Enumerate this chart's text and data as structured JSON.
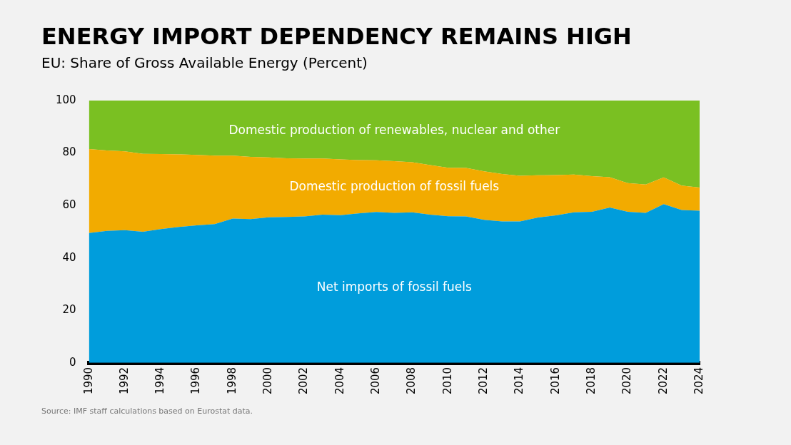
{
  "chart_data": {
    "type": "area",
    "title": "ENERGY IMPORT DEPENDENCY REMAINS HIGH",
    "subtitle": "EU: Share of Gross Available Energy (Percent)",
    "x": [
      1990,
      1991,
      1992,
      1993,
      1994,
      1995,
      1996,
      1997,
      1998,
      1999,
      2000,
      2001,
      2002,
      2003,
      2004,
      2005,
      2006,
      2007,
      2008,
      2009,
      2010,
      2011,
      2012,
      2013,
      2014,
      2015,
      2016,
      2017,
      2018,
      2019,
      2020,
      2021,
      2022,
      2023,
      2024
    ],
    "stacked": true,
    "series": [
      {
        "name": "Net imports of fossil fuels",
        "color": "#009ddc",
        "values": [
          49.5,
          50.3,
          50.6,
          50.0,
          51.0,
          51.8,
          52.4,
          52.9,
          55.0,
          54.8,
          55.5,
          55.6,
          55.8,
          56.5,
          56.3,
          57.0,
          57.5,
          57.2,
          57.4,
          56.5,
          55.9,
          55.8,
          54.5,
          53.9,
          53.9,
          55.4,
          56.2,
          57.4,
          57.6,
          59.2,
          57.6,
          57.2,
          60.5,
          58.3,
          58.0
        ]
      },
      {
        "name": "Domestic production of fossil fuels",
        "color": "#f2ab00",
        "values": [
          32.0,
          30.7,
          30.0,
          29.7,
          28.6,
          27.7,
          26.9,
          26.1,
          24.0,
          23.7,
          22.8,
          22.4,
          22.1,
          21.4,
          21.3,
          20.3,
          19.7,
          19.7,
          19.1,
          18.9,
          18.5,
          18.5,
          18.5,
          18.1,
          17.4,
          16.1,
          15.4,
          14.4,
          13.6,
          11.6,
          10.9,
          10.8,
          10.2,
          9.3,
          8.8
        ]
      },
      {
        "name": "Domestic production of renewables, nuclear and other",
        "color": "#7ac022",
        "values": [
          18.5,
          19.0,
          19.4,
          20.3,
          20.4,
          20.5,
          20.7,
          21.0,
          21.0,
          21.5,
          21.7,
          22.0,
          22.1,
          22.1,
          22.4,
          22.7,
          22.8,
          23.1,
          23.5,
          24.6,
          25.6,
          25.7,
          27.0,
          28.0,
          28.7,
          28.5,
          28.4,
          28.2,
          28.8,
          29.2,
          31.5,
          32.0,
          29.3,
          32.4,
          33.2
        ]
      }
    ],
    "xlim": [
      1990,
      2024
    ],
    "xticks": [
      1990,
      1992,
      1994,
      1996,
      1998,
      2000,
      2002,
      2004,
      2006,
      2008,
      2010,
      2012,
      2014,
      2016,
      2018,
      2020,
      2022,
      2024
    ],
    "ylim": [
      0,
      100
    ],
    "yticks": [
      0,
      20,
      40,
      60,
      80,
      100
    ],
    "grid": false,
    "legend": false,
    "annotations": [
      "Source: IMF staff calculations based on Eurostat data."
    ]
  }
}
